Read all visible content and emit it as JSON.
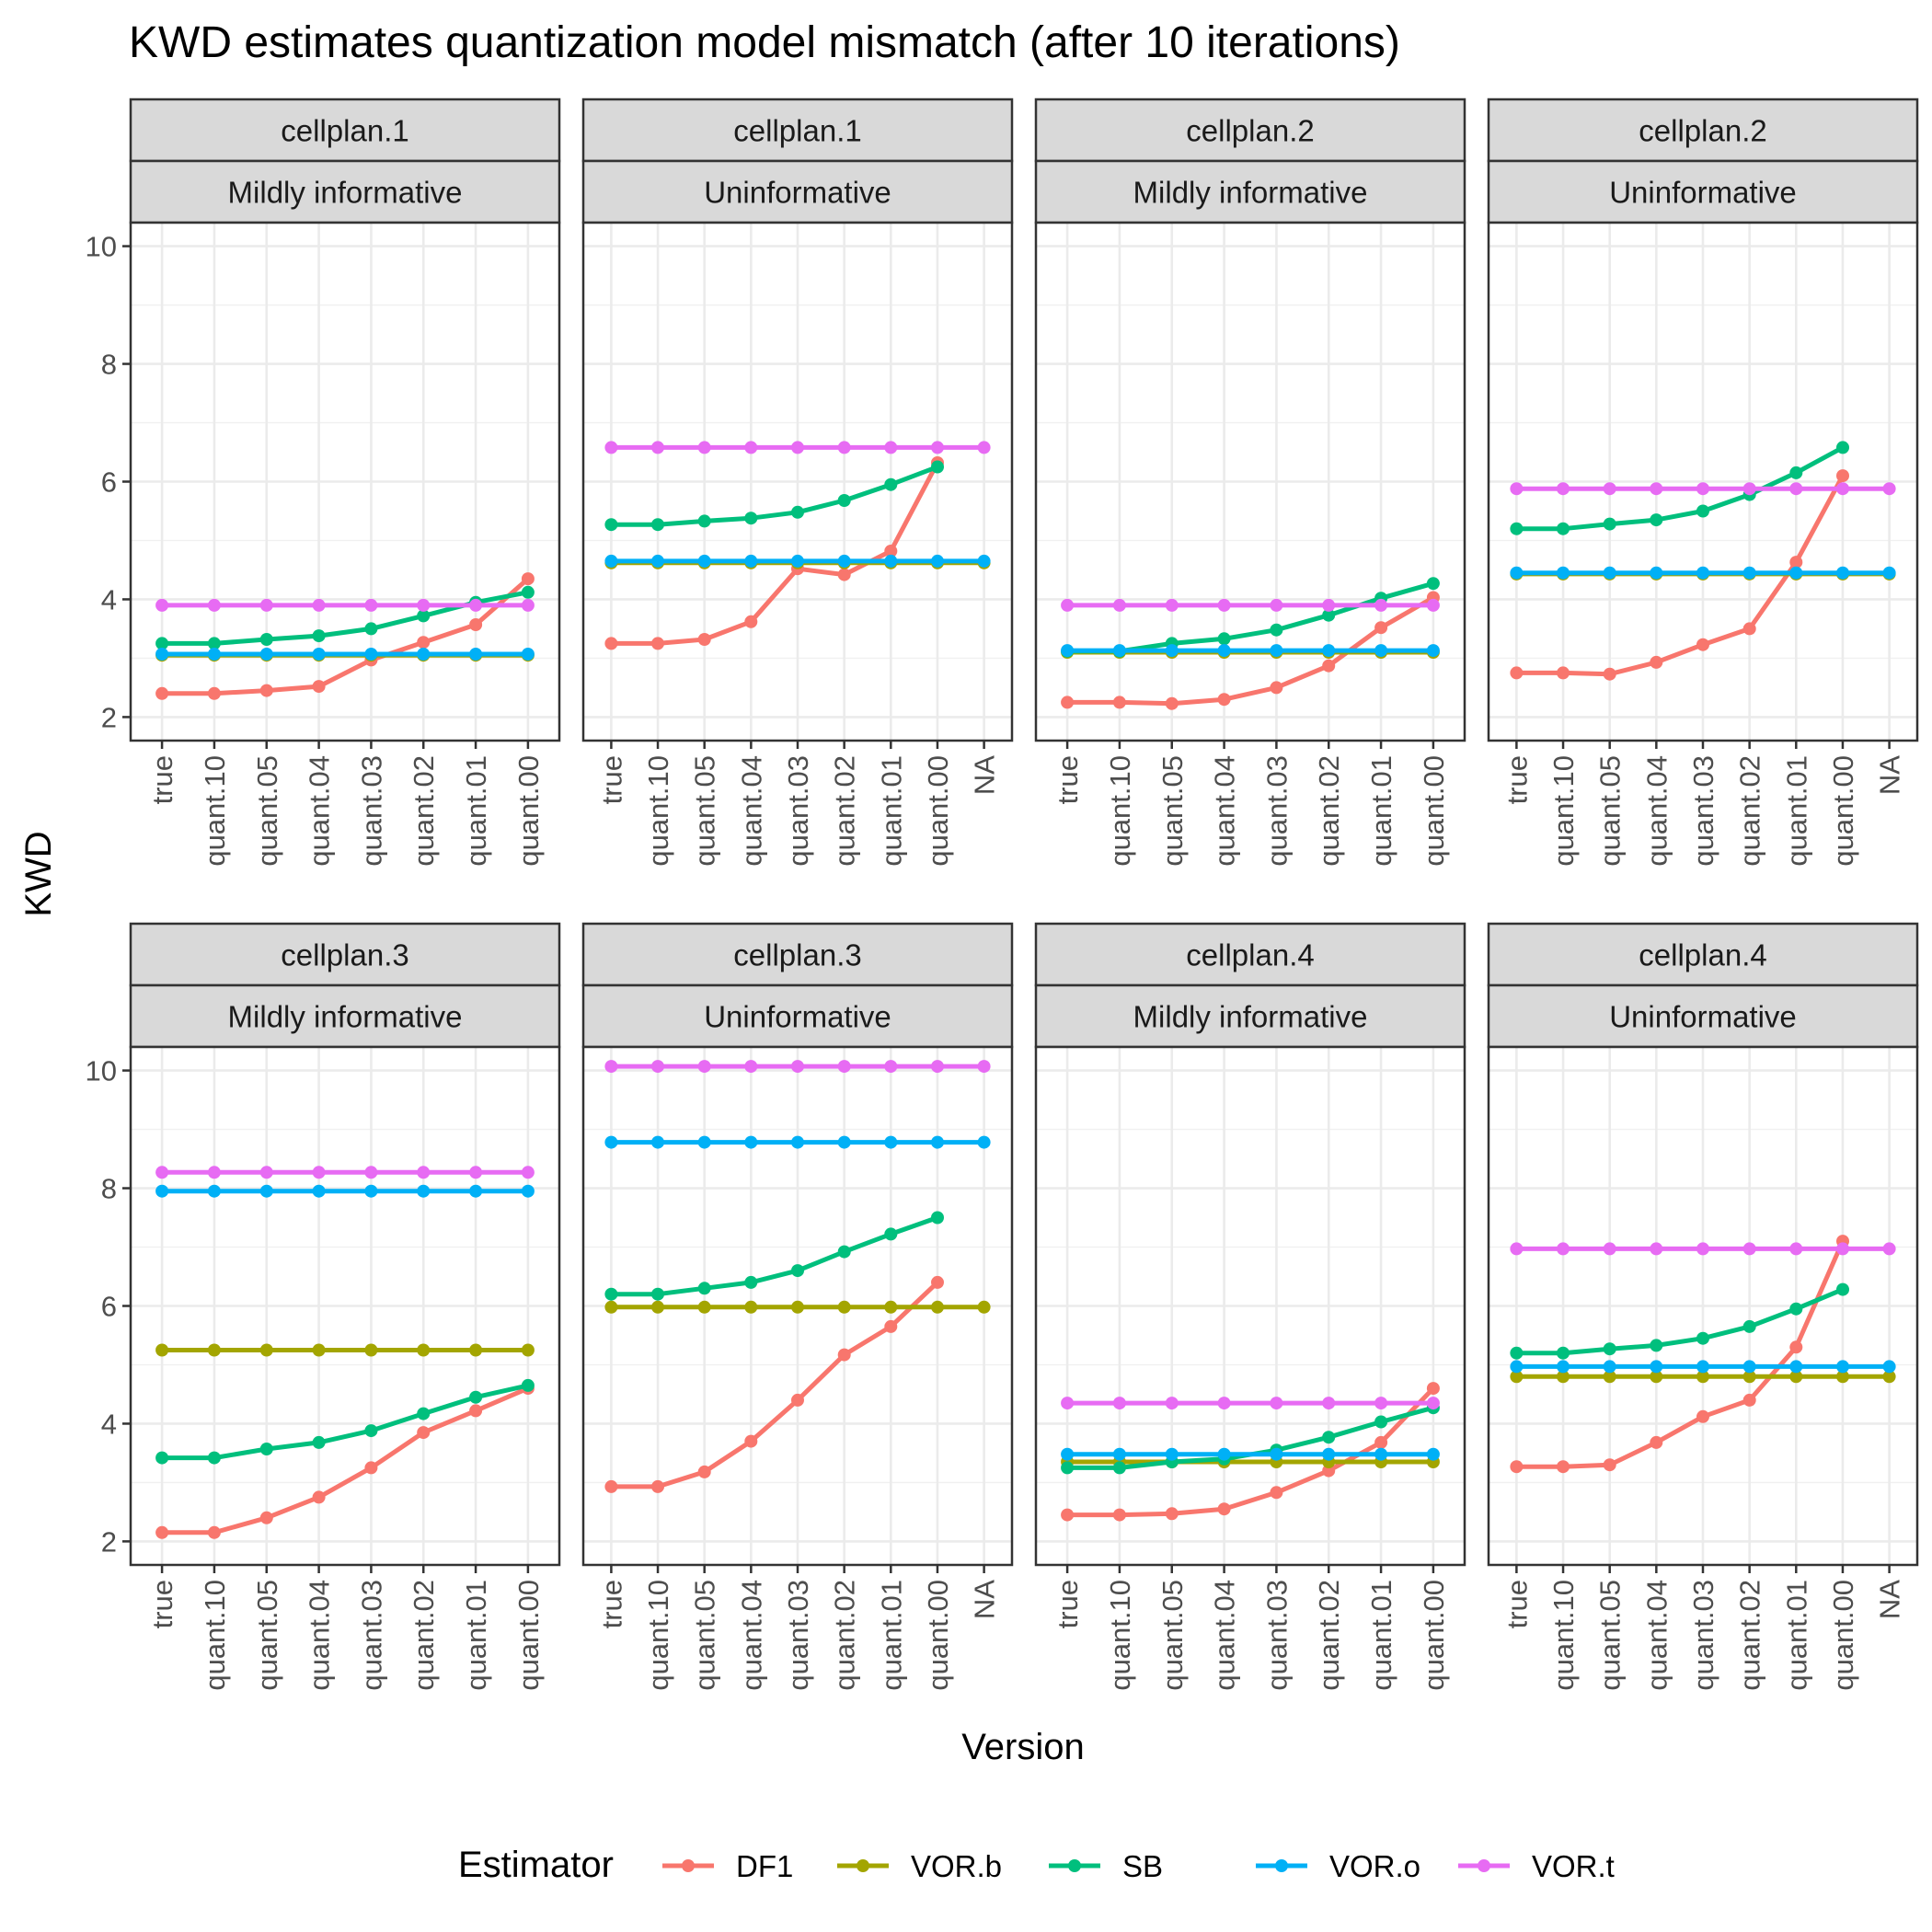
{
  "chart_data": {
    "type": "line",
    "title": "KWD estimates quantization model mismatch (after 10 iterations)",
    "xlabel": "Version",
    "ylabel": "KWD",
    "ylim": [
      1.6,
      10.4
    ],
    "yticks": [
      2,
      4,
      6,
      8,
      10
    ],
    "grid": true,
    "legend": {
      "title": "Estimator",
      "position": "bottom",
      "entries": [
        {
          "name": "DF1",
          "color": "#F8766D"
        },
        {
          "name": "VOR.b",
          "color": "#A3A500"
        },
        {
          "name": "SB",
          "color": "#00BF7D"
        },
        {
          "name": "VOR.o",
          "color": "#00B0F6"
        },
        {
          "name": "VOR.t",
          "color": "#E76BF3"
        }
      ]
    },
    "panels": [
      {
        "strip1": "cellplan.1",
        "strip2": "Mildly informative",
        "categories": [
          "true",
          "quant.10",
          "quant.05",
          "quant.04",
          "quant.03",
          "quant.02",
          "quant.01",
          "quant.00"
        ],
        "series": [
          {
            "name": "DF1",
            "values": [
              2.4,
              2.4,
              2.45,
              2.52,
              2.97,
              3.27,
              3.57,
              4.35
            ]
          },
          {
            "name": "VOR.b",
            "values": [
              3.05,
              3.05,
              3.05,
              3.05,
              3.05,
              3.05,
              3.05,
              3.05
            ]
          },
          {
            "name": "SB",
            "values": [
              3.25,
              3.25,
              3.32,
              3.38,
              3.5,
              3.72,
              3.95,
              4.12
            ]
          },
          {
            "name": "VOR.o",
            "values": [
              3.07,
              3.07,
              3.07,
              3.07,
              3.07,
              3.07,
              3.07,
              3.07
            ]
          },
          {
            "name": "VOR.t",
            "values": [
              3.9,
              3.9,
              3.9,
              3.9,
              3.9,
              3.9,
              3.9,
              3.9
            ]
          }
        ]
      },
      {
        "strip1": "cellplan.1",
        "strip2": "Uninformative",
        "categories": [
          "true",
          "quant.10",
          "quant.05",
          "quant.04",
          "quant.03",
          "quant.02",
          "quant.01",
          "quant.00",
          "NA"
        ],
        "series": [
          {
            "name": "DF1",
            "values": [
              3.25,
              3.25,
              3.32,
              3.62,
              4.52,
              4.42,
              4.82,
              6.32,
              null
            ]
          },
          {
            "name": "VOR.b",
            "values": [
              4.62,
              4.62,
              4.62,
              4.62,
              4.62,
              4.62,
              4.62,
              4.62,
              4.62
            ]
          },
          {
            "name": "SB",
            "values": [
              5.27,
              5.27,
              5.33,
              5.38,
              5.48,
              5.68,
              5.95,
              6.25,
              null
            ]
          },
          {
            "name": "VOR.o",
            "values": [
              4.65,
              4.65,
              4.65,
              4.65,
              4.65,
              4.65,
              4.65,
              4.65,
              4.65
            ]
          },
          {
            "name": "VOR.t",
            "values": [
              6.58,
              6.58,
              6.58,
              6.58,
              6.58,
              6.58,
              6.58,
              6.58,
              6.58
            ]
          }
        ]
      },
      {
        "strip1": "cellplan.2",
        "strip2": "Mildly informative",
        "categories": [
          "true",
          "quant.10",
          "quant.05",
          "quant.04",
          "quant.03",
          "quant.02",
          "quant.01",
          "quant.00"
        ],
        "series": [
          {
            "name": "DF1",
            "values": [
              2.25,
              2.25,
              2.23,
              2.3,
              2.5,
              2.87,
              3.52,
              4.03
            ]
          },
          {
            "name": "VOR.b",
            "values": [
              3.1,
              3.1,
              3.1,
              3.1,
              3.1,
              3.1,
              3.1,
              3.1
            ]
          },
          {
            "name": "SB",
            "values": [
              3.12,
              3.12,
              3.25,
              3.33,
              3.48,
              3.73,
              4.02,
              4.27
            ]
          },
          {
            "name": "VOR.o",
            "values": [
              3.13,
              3.13,
              3.13,
              3.13,
              3.13,
              3.13,
              3.13,
              3.13
            ]
          },
          {
            "name": "VOR.t",
            "values": [
              3.9,
              3.9,
              3.9,
              3.9,
              3.9,
              3.9,
              3.9,
              3.9
            ]
          }
        ]
      },
      {
        "strip1": "cellplan.2",
        "strip2": "Uninformative",
        "categories": [
          "true",
          "quant.10",
          "quant.05",
          "quant.04",
          "quant.03",
          "quant.02",
          "quant.01",
          "quant.00",
          "NA"
        ],
        "series": [
          {
            "name": "DF1",
            "values": [
              2.75,
              2.75,
              2.73,
              2.93,
              3.23,
              3.5,
              4.63,
              6.1,
              null
            ]
          },
          {
            "name": "VOR.b",
            "values": [
              4.43,
              4.43,
              4.43,
              4.43,
              4.43,
              4.43,
              4.43,
              4.43,
              4.43
            ]
          },
          {
            "name": "SB",
            "values": [
              5.2,
              5.2,
              5.28,
              5.35,
              5.5,
              5.78,
              6.15,
              6.58,
              null
            ]
          },
          {
            "name": "VOR.o",
            "values": [
              4.45,
              4.45,
              4.45,
              4.45,
              4.45,
              4.45,
              4.45,
              4.45,
              4.45
            ]
          },
          {
            "name": "VOR.t",
            "values": [
              5.88,
              5.88,
              5.88,
              5.88,
              5.88,
              5.88,
              5.88,
              5.88,
              5.88
            ]
          }
        ]
      },
      {
        "strip1": "cellplan.3",
        "strip2": "Mildly informative",
        "categories": [
          "true",
          "quant.10",
          "quant.05",
          "quant.04",
          "quant.03",
          "quant.02",
          "quant.01",
          "quant.00"
        ],
        "series": [
          {
            "name": "DF1",
            "values": [
              2.15,
              2.15,
              2.4,
              2.75,
              3.25,
              3.85,
              4.22,
              4.6
            ]
          },
          {
            "name": "VOR.b",
            "values": [
              5.25,
              5.25,
              5.25,
              5.25,
              5.25,
              5.25,
              5.25,
              5.25
            ]
          },
          {
            "name": "SB",
            "values": [
              3.42,
              3.42,
              3.57,
              3.68,
              3.88,
              4.17,
              4.45,
              4.65
            ]
          },
          {
            "name": "VOR.o",
            "values": [
              7.95,
              7.95,
              7.95,
              7.95,
              7.95,
              7.95,
              7.95,
              7.95
            ]
          },
          {
            "name": "VOR.t",
            "values": [
              8.27,
              8.27,
              8.27,
              8.27,
              8.27,
              8.27,
              8.27,
              8.27
            ]
          }
        ]
      },
      {
        "strip1": "cellplan.3",
        "strip2": "Uninformative",
        "categories": [
          "true",
          "quant.10",
          "quant.05",
          "quant.04",
          "quant.03",
          "quant.02",
          "quant.01",
          "quant.00",
          "NA"
        ],
        "series": [
          {
            "name": "DF1",
            "values": [
              2.93,
              2.93,
              3.18,
              3.7,
              4.4,
              5.17,
              5.65,
              6.4,
              null
            ]
          },
          {
            "name": "VOR.b",
            "values": [
              5.98,
              5.98,
              5.98,
              5.98,
              5.98,
              5.98,
              5.98,
              5.98,
              5.98
            ]
          },
          {
            "name": "SB",
            "values": [
              6.2,
              6.2,
              6.3,
              6.4,
              6.6,
              6.92,
              7.22,
              7.5,
              null
            ]
          },
          {
            "name": "VOR.o",
            "values": [
              8.78,
              8.78,
              8.78,
              8.78,
              8.78,
              8.78,
              8.78,
              8.78,
              8.78
            ]
          },
          {
            "name": "VOR.t",
            "values": [
              10.07,
              10.07,
              10.07,
              10.07,
              10.07,
              10.07,
              10.07,
              10.07,
              10.07
            ]
          }
        ]
      },
      {
        "strip1": "cellplan.4",
        "strip2": "Mildly informative",
        "categories": [
          "true",
          "quant.10",
          "quant.05",
          "quant.04",
          "quant.03",
          "quant.02",
          "quant.01",
          "quant.00"
        ],
        "series": [
          {
            "name": "DF1",
            "values": [
              2.45,
              2.45,
              2.47,
              2.55,
              2.83,
              3.2,
              3.68,
              4.6
            ]
          },
          {
            "name": "VOR.b",
            "values": [
              3.35,
              3.35,
              3.35,
              3.35,
              3.35,
              3.35,
              3.35,
              3.35
            ]
          },
          {
            "name": "SB",
            "values": [
              3.25,
              3.25,
              3.35,
              3.4,
              3.55,
              3.77,
              4.03,
              4.27
            ]
          },
          {
            "name": "VOR.o",
            "values": [
              3.48,
              3.48,
              3.48,
              3.48,
              3.48,
              3.48,
              3.48,
              3.48
            ]
          },
          {
            "name": "VOR.t",
            "values": [
              4.35,
              4.35,
              4.35,
              4.35,
              4.35,
              4.35,
              4.35,
              4.35
            ]
          }
        ]
      },
      {
        "strip1": "cellplan.4",
        "strip2": "Uninformative",
        "categories": [
          "true",
          "quant.10",
          "quant.05",
          "quant.04",
          "quant.03",
          "quant.02",
          "quant.01",
          "quant.00",
          "NA"
        ],
        "series": [
          {
            "name": "DF1",
            "values": [
              3.27,
              3.27,
              3.3,
              3.68,
              4.12,
              4.4,
              5.3,
              7.1,
              null
            ]
          },
          {
            "name": "VOR.b",
            "values": [
              4.8,
              4.8,
              4.8,
              4.8,
              4.8,
              4.8,
              4.8,
              4.8,
              4.8
            ]
          },
          {
            "name": "SB",
            "values": [
              5.2,
              5.2,
              5.27,
              5.33,
              5.45,
              5.65,
              5.95,
              6.28,
              null
            ]
          },
          {
            "name": "VOR.o",
            "values": [
              4.97,
              4.97,
              4.97,
              4.97,
              4.97,
              4.97,
              4.97,
              4.97,
              4.97
            ]
          },
          {
            "name": "VOR.t",
            "values": [
              6.97,
              6.97,
              6.97,
              6.97,
              6.97,
              6.97,
              6.97,
              6.97,
              6.97
            ]
          }
        ]
      }
    ]
  }
}
